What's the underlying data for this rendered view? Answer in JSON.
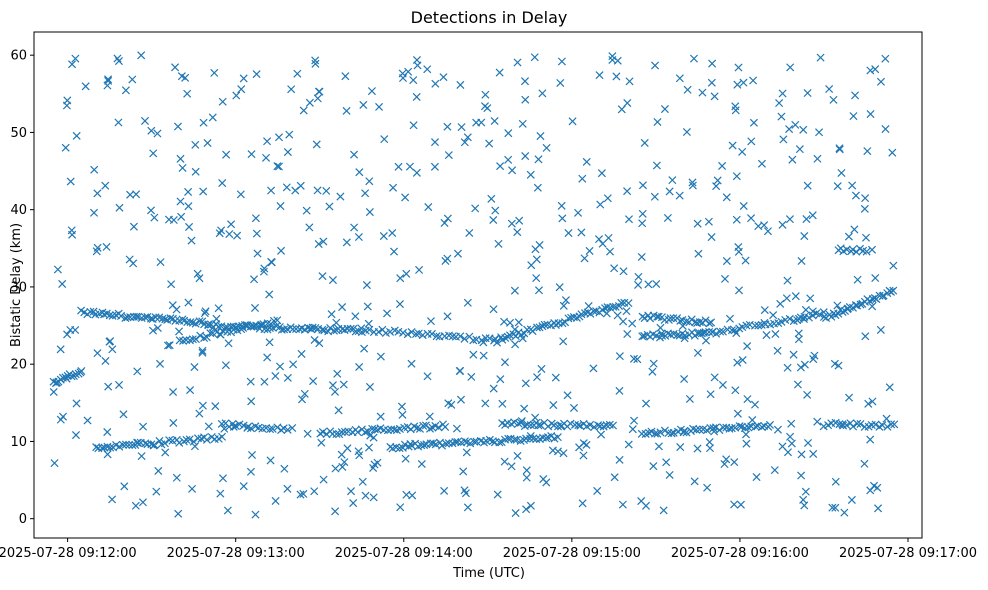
{
  "chart_data": {
    "type": "scatter",
    "title": "Detections in Delay",
    "xlabel": "Time (UTC)",
    "ylabel": "Bistatic Delay (km)",
    "marker": "x",
    "marker_color": "#1f77b4",
    "grid": false,
    "legend": "none",
    "x_axis": {
      "kind": "datetime",
      "range": [
        "2025-07-28 09:11:48",
        "2025-07-28 09:17:05"
      ],
      "ticks": [
        "2025-07-28 09:12:00",
        "2025-07-28 09:13:00",
        "2025-07-28 09:14:00",
        "2025-07-28 09:15:00",
        "2025-07-28 09:16:00",
        "2025-07-28 09:17:00"
      ]
    },
    "y_axis": {
      "range": [
        -2.5,
        63
      ],
      "ticks": [
        0,
        10,
        20,
        30,
        40,
        50,
        60
      ]
    },
    "data_window": [
      "2025-07-28 09:11:55",
      "2025-07-28 09:16:55"
    ],
    "tracks": [
      {
        "start": [
          "2025-07-28 09:11:55",
          17.7
        ],
        "end": [
          "2025-07-28 09:12:05",
          19.0
        ],
        "points": 16
      },
      {
        "start": [
          "2025-07-28 09:12:05",
          26.7
        ],
        "end": [
          "2025-07-28 09:12:50",
          25.3
        ],
        "points": 45
      },
      {
        "start": [
          "2025-07-28 09:12:50",
          25.0
        ],
        "end": [
          "2025-07-28 09:13:45",
          24.3
        ],
        "points": 55
      },
      {
        "start": [
          "2025-07-28 09:12:40",
          23.0
        ],
        "end": [
          "2025-07-28 09:13:15",
          25.5
        ],
        "points": 30
      },
      {
        "start": [
          "2025-07-28 09:13:45",
          24.5
        ],
        "end": [
          "2025-07-28 09:14:35",
          23.0
        ],
        "points": 35
      },
      {
        "start": [
          "2025-07-28 09:14:35",
          23.3
        ],
        "end": [
          "2025-07-28 09:15:20",
          28.0
        ],
        "points": 45
      },
      {
        "start": [
          "2025-07-28 09:15:25",
          26.2
        ],
        "end": [
          "2025-07-28 09:15:50",
          25.4
        ],
        "points": 25
      },
      {
        "start": [
          "2025-07-28 09:15:25",
          23.6
        ],
        "end": [
          "2025-07-28 09:15:50",
          24.0
        ],
        "points": 25
      },
      {
        "start": [
          "2025-07-28 09:15:50",
          24.0
        ],
        "end": [
          "2025-07-28 09:16:30",
          26.5
        ],
        "points": 30
      },
      {
        "start": [
          "2025-07-28 09:16:30",
          26.0
        ],
        "end": [
          "2025-07-28 09:16:55",
          29.5
        ],
        "points": 30
      },
      {
        "start": [
          "2025-07-28 09:16:35",
          34.8
        ],
        "end": [
          "2025-07-28 09:16:45",
          34.8
        ],
        "points": 10
      },
      {
        "start": [
          "2025-07-28 09:12:10",
          9.3
        ],
        "end": [
          "2025-07-28 09:12:25",
          9.6
        ],
        "points": 15
      },
      {
        "start": [
          "2025-07-28 09:12:25",
          9.6
        ],
        "end": [
          "2025-07-28 09:12:55",
          10.5
        ],
        "points": 25
      },
      {
        "start": [
          "2025-07-28 09:12:55",
          12.2
        ],
        "end": [
          "2025-07-28 09:13:20",
          11.5
        ],
        "points": 20
      },
      {
        "start": [
          "2025-07-28 09:13:30",
          11.0
        ],
        "end": [
          "2025-07-28 09:14:15",
          12.0
        ],
        "points": 40
      },
      {
        "start": [
          "2025-07-28 09:13:55",
          9.3
        ],
        "end": [
          "2025-07-28 09:14:55",
          10.5
        ],
        "points": 55
      },
      {
        "start": [
          "2025-07-28 09:14:35",
          12.3
        ],
        "end": [
          "2025-07-28 09:15:15",
          12.0
        ],
        "points": 35
      },
      {
        "start": [
          "2025-07-28 09:15:25",
          11.0
        ],
        "end": [
          "2025-07-28 09:16:10",
          12.0
        ],
        "points": 40
      },
      {
        "start": [
          "2025-07-28 09:16:30",
          12.2
        ],
        "end": [
          "2025-07-28 09:16:55",
          12.0
        ],
        "points": 20
      }
    ],
    "scattered_points": {
      "count": 700,
      "x_range": [
        "2025-07-28 09:11:55",
        "2025-07-28 09:16:55"
      ],
      "y_range": [
        0.5,
        60
      ]
    }
  }
}
